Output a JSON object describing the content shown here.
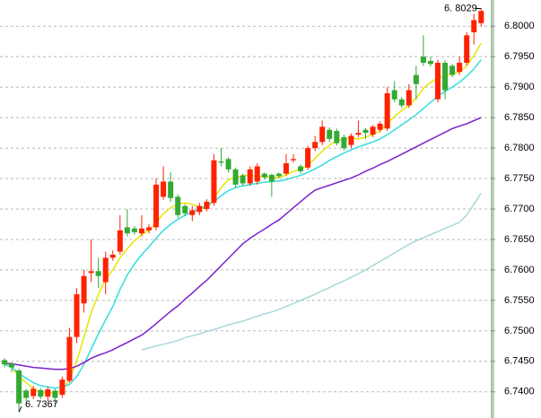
{
  "chart_data": {
    "type": "candlestick",
    "up_color": "#ff2200",
    "down_color": "#33aa33",
    "grid": true,
    "ylim": [
      6.7357,
      6.8043
    ],
    "yticks": [
      {
        "value": 6.74,
        "label": "6.7400"
      },
      {
        "value": 6.745,
        "label": "6.7450"
      },
      {
        "value": 6.75,
        "label": "6.7500"
      },
      {
        "value": 6.755,
        "label": "6.7550"
      },
      {
        "value": 6.76,
        "label": "6.7600"
      },
      {
        "value": 6.765,
        "label": "6.7650"
      },
      {
        "value": 6.77,
        "label": "6.7700"
      },
      {
        "value": 6.775,
        "label": "6.7750"
      },
      {
        "value": 6.78,
        "label": "6.7800"
      },
      {
        "value": 6.785,
        "label": "6.7850"
      },
      {
        "value": 6.79,
        "label": "6.7900"
      },
      {
        "value": 6.795,
        "label": "6.7950"
      },
      {
        "value": 6.8,
        "label": "6.8000"
      }
    ],
    "annotations": [
      {
        "text": "6. 8029",
        "value": 6.8029
      },
      {
        "text": "6. 7367",
        "value": 6.7367
      }
    ],
    "open": [
      6.7452,
      6.7446,
      6.7435,
      6.7402,
      6.7393,
      6.7403,
      6.7392,
      6.7402,
      6.7395,
      6.7418,
      6.749,
      6.7545,
      6.7595,
      6.7598,
      6.758,
      6.762,
      6.763,
      6.767,
      6.7668,
      6.766,
      6.7665,
      6.767,
      6.772,
      6.7745,
      6.772,
      6.7705,
      6.769,
      6.7695,
      6.77,
      6.771,
      6.7778,
      6.7782,
      6.7765,
      6.7755,
      6.7742,
      6.7745,
      6.7758,
      6.7756,
      6.7758,
      6.7758,
      6.778,
      6.777,
      6.7768,
      6.78,
      6.781,
      6.783,
      6.7828,
      6.7818,
      6.7805,
      6.7822,
      6.783,
      6.7822,
      6.783,
      6.7832,
      6.7895,
      6.788,
      6.787,
      6.792,
      6.795,
      6.7943,
      6.788,
      6.794,
      6.7935,
      6.7925,
      6.794,
      6.799,
      6.8005
    ],
    "high": [
      6.7455,
      6.7448,
      6.7438,
      6.7405,
      6.741,
      6.7406,
      6.7408,
      6.7405,
      6.7425,
      6.7505,
      6.757,
      6.76,
      6.765,
      6.762,
      6.763,
      6.7632,
      6.769,
      6.77,
      6.7672,
      6.769,
      6.7675,
      6.775,
      6.777,
      6.776,
      6.7724,
      6.7708,
      6.7705,
      6.771,
      6.7716,
      6.779,
      6.78,
      6.7785,
      6.7768,
      6.7758,
      6.777,
      6.7775,
      6.776,
      6.7758,
      6.776,
      6.779,
      6.779,
      6.7773,
      6.7804,
      6.782,
      6.7845,
      6.7834,
      6.7832,
      6.7822,
      6.7824,
      6.7845,
      6.7833,
      6.7838,
      6.7844,
      6.79,
      6.791,
      6.7884,
      6.7905,
      6.7935,
      6.7985,
      6.795,
      6.7945,
      6.7944,
      6.7938,
      6.795,
      6.799,
      6.802,
      6.8029
    ],
    "low": [
      6.744,
      6.7432,
      6.7367,
      6.7385,
      6.7388,
      6.7388,
      6.7385,
      6.738,
      6.739,
      6.7415,
      6.748,
      6.753,
      6.758,
      6.757,
      6.756,
      6.7615,
      6.7625,
      6.7655,
      6.7658,
      6.7655,
      6.766,
      6.7665,
      6.7715,
      6.7712,
      6.7685,
      6.7688,
      6.768,
      6.769,
      6.7696,
      6.7705,
      6.777,
      6.776,
      6.7735,
      6.7738,
      6.7738,
      6.774,
      6.7748,
      6.772,
      6.775,
      6.7755,
      6.7776,
      6.7758,
      6.7764,
      6.7795,
      6.7805,
      6.781,
      6.7804,
      6.7796,
      6.78,
      6.7818,
      6.7815,
      6.7818,
      6.7826,
      6.7828,
      6.7875,
      6.7866,
      6.7866,
      6.788,
      6.7935,
      6.7934,
      6.7875,
      6.788,
      6.7916,
      6.792,
      6.7936,
      6.797,
      6.8
    ],
    "close": [
      6.7445,
      6.744,
      6.7381,
      6.739,
      6.7405,
      6.7392,
      6.7404,
      6.739,
      6.742,
      6.749,
      6.756,
      6.759,
      6.7598,
      6.759,
      6.762,
      6.7625,
      6.7665,
      6.766,
      6.7662,
      6.7668,
      6.767,
      6.774,
      6.7745,
      6.7718,
      6.769,
      6.7693,
      6.7698,
      6.7705,
      6.7712,
      6.778,
      6.7776,
      6.7765,
      6.774,
      6.7742,
      6.7765,
      6.777,
      6.7752,
      6.7745,
      6.7754,
      6.7775,
      6.7782,
      6.7762,
      6.78,
      6.781,
      6.7835,
      6.7815,
      6.7808,
      6.78,
      6.782,
      6.7825,
      6.7825,
      6.7835,
      6.784,
      6.789,
      6.788,
      6.787,
      6.7895,
      6.7905,
      6.794,
      6.7938,
      6.794,
      6.7895,
      6.792,
      6.794,
      6.7985,
      6.801,
      6.8025
    ],
    "series": [
      {
        "color": "#e6e600",
        "values": [
          6.7448,
          6.744,
          6.7425,
          6.7415,
          6.7405,
          6.7398,
          6.7398,
          6.7398,
          6.7402,
          6.742,
          6.745,
          6.749,
          6.753,
          6.756,
          6.7585,
          6.76,
          6.762,
          6.7635,
          6.7648,
          6.7658,
          6.7665,
          6.7678,
          6.7692,
          6.7702,
          6.7708,
          6.771,
          6.7708,
          6.7703,
          6.77,
          6.7718,
          6.7735,
          6.7748,
          6.7752,
          6.7755,
          6.7755,
          6.7754,
          6.7753,
          6.7752,
          6.7752,
          6.7756,
          6.7762,
          6.7765,
          6.7772,
          6.7783,
          6.7795,
          6.7805,
          6.7812,
          6.7815,
          6.7816,
          6.7815,
          6.7818,
          6.7822,
          6.7828,
          6.784,
          6.7852,
          6.7862,
          6.787,
          6.7882,
          6.7898,
          6.7908,
          6.7915,
          6.7918,
          6.7922,
          6.7925,
          6.7935,
          6.7952,
          6.7972
        ]
      },
      {
        "color": "#33dddd",
        "values": [
          6.7445,
          6.744,
          6.743,
          6.7422,
          6.7415,
          6.741,
          6.7408,
          6.7406,
          6.7408,
          6.7412,
          6.7425,
          6.7445,
          6.747,
          6.7495,
          6.7518,
          6.754,
          6.7568,
          6.7592,
          6.761,
          6.7625,
          6.7638,
          6.7652,
          6.7665,
          6.7675,
          6.7683,
          6.769,
          6.7695,
          6.77,
          6.7705,
          6.7712,
          6.7722,
          6.773,
          6.7735,
          6.7738,
          6.774,
          6.7742,
          6.7744,
          6.7745,
          6.7746,
          6.7748,
          6.7752,
          6.7755,
          6.776,
          6.7766,
          6.7772,
          6.778,
          6.7786,
          6.7792,
          6.7797,
          6.7802,
          6.7806,
          6.781,
          6.7815,
          6.7822,
          6.783,
          6.7838,
          6.7846,
          6.7855,
          6.7865,
          6.7875,
          6.7885,
          6.7893,
          6.79,
          6.7908,
          6.7918,
          6.793,
          6.7945
        ]
      },
      {
        "color": "#7a22cc",
        "values": [
          6.7447,
          6.7446,
          6.7444,
          6.7442,
          6.744,
          6.7439,
          6.7438,
          6.7437,
          6.7437,
          6.7438,
          6.7442,
          6.7448,
          6.7455,
          6.746,
          6.7464,
          6.7469,
          6.7475,
          6.7481,
          6.7487,
          6.7493,
          6.7502,
          6.7512,
          6.7522,
          6.7532,
          6.7541,
          6.7552,
          6.7562,
          6.7573,
          6.7583,
          6.7595,
          6.7607,
          6.7619,
          6.7631,
          6.7643,
          6.7652,
          6.766,
          6.7667,
          6.7675,
          6.7682,
          6.7692,
          6.7702,
          6.7712,
          6.7722,
          6.7731,
          6.7735,
          6.7739,
          6.7743,
          6.7747,
          6.7751,
          6.7756,
          6.7762,
          6.7767,
          6.7773,
          6.7778,
          6.7784,
          6.779,
          6.7796,
          6.7802,
          6.7808,
          6.7814,
          6.782,
          6.7826,
          6.7832,
          6.7836,
          6.784,
          6.7845,
          6.785
        ]
      },
      {
        "color": "#a8d8dc",
        "values": [
          null,
          null,
          null,
          null,
          null,
          null,
          null,
          null,
          null,
          null,
          null,
          null,
          null,
          null,
          null,
          null,
          null,
          null,
          null,
          6.7469,
          6.7472,
          6.7475,
          6.7478,
          6.7481,
          6.7484,
          6.7489,
          6.7492,
          6.7495,
          6.7499,
          6.7502,
          6.7506,
          6.751,
          6.7513,
          6.7516,
          6.752,
          6.7524,
          6.7528,
          6.7531,
          6.7535,
          6.754,
          6.7545,
          6.755,
          6.7555,
          6.756,
          6.7566,
          6.7571,
          6.7577,
          6.7582,
          6.7588,
          6.7594,
          6.76,
          6.7607,
          6.7614,
          6.7621,
          6.7628,
          6.7635,
          6.7642,
          6.7648,
          6.7653,
          6.7658,
          6.7663,
          6.7668,
          6.7673,
          6.7678,
          6.769,
          6.7708,
          6.7726
        ]
      }
    ]
  }
}
